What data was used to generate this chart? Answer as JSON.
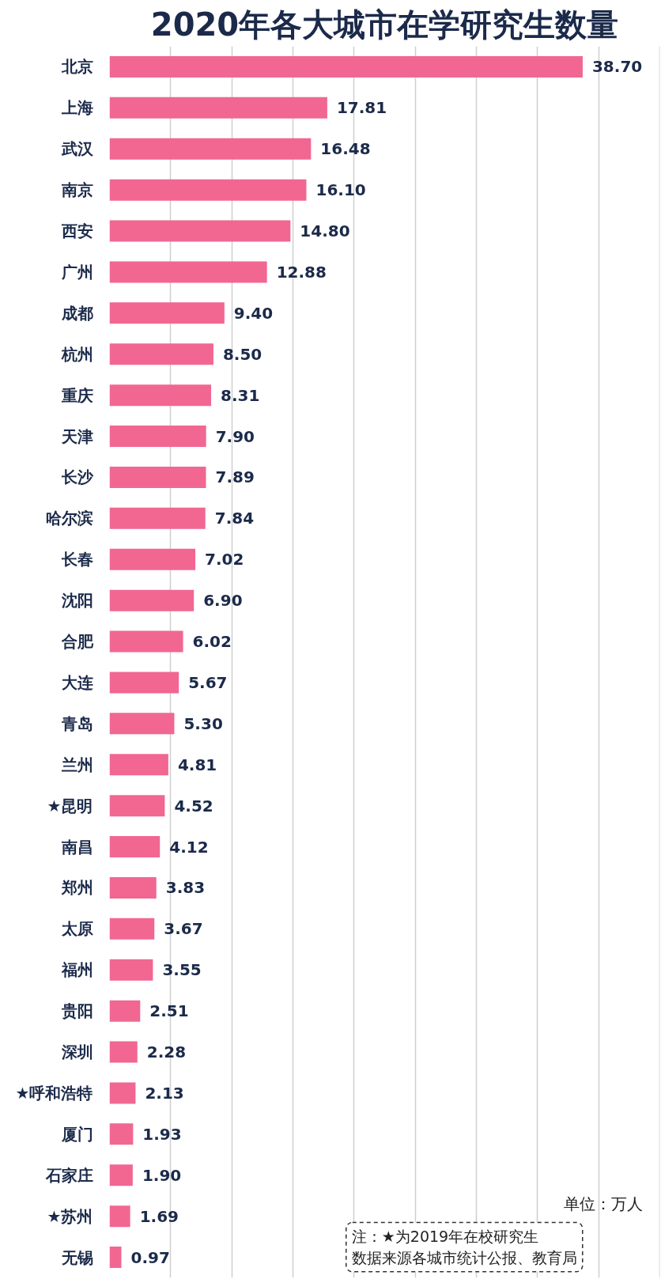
{
  "chart_data": {
    "type": "bar",
    "orientation": "horizontal",
    "title": "2020年各大城市在学研究生数量",
    "categories": [
      "北京",
      "上海",
      "武汉",
      "南京",
      "西安",
      "广州",
      "成都",
      "杭州",
      "重庆",
      "天津",
      "长沙",
      "哈尔滨",
      "长春",
      "沈阳",
      "合肥",
      "大连",
      "青岛",
      "兰州",
      "★昆明",
      "南昌",
      "郑州",
      "太原",
      "福州",
      "贵阳",
      "深圳",
      "★呼和浩特",
      "厦门",
      "石家庄",
      "★苏州",
      "无锡"
    ],
    "values": [
      38.7,
      17.81,
      16.48,
      16.1,
      14.8,
      12.88,
      9.4,
      8.5,
      8.31,
      7.9,
      7.89,
      7.84,
      7.02,
      6.9,
      6.02,
      5.67,
      5.3,
      4.81,
      4.52,
      4.12,
      3.83,
      3.67,
      3.55,
      2.51,
      2.28,
      2.13,
      1.93,
      1.9,
      1.69,
      0.97
    ],
    "value_labels": [
      "38.70",
      "17.81",
      "16.48",
      "16.10",
      "14.80",
      "12.88",
      "9.40",
      "8.50",
      "8.31",
      "7.90",
      "7.89",
      "7.84",
      "7.02",
      "6.90",
      "6.02",
      "5.67",
      "5.30",
      "4.81",
      "4.52",
      "4.12",
      "3.83",
      "3.67",
      "3.55",
      "2.51",
      "2.28",
      "2.13",
      "1.93",
      "1.90",
      "1.69",
      "0.97"
    ],
    "color": "#f16792",
    "tick_labels": "y",
    "grid": "x",
    "annotations": [
      "单位：万人",
      "注：★为2019年在校研究生",
      "数据来源各城市统计公报、教育局"
    ]
  }
}
